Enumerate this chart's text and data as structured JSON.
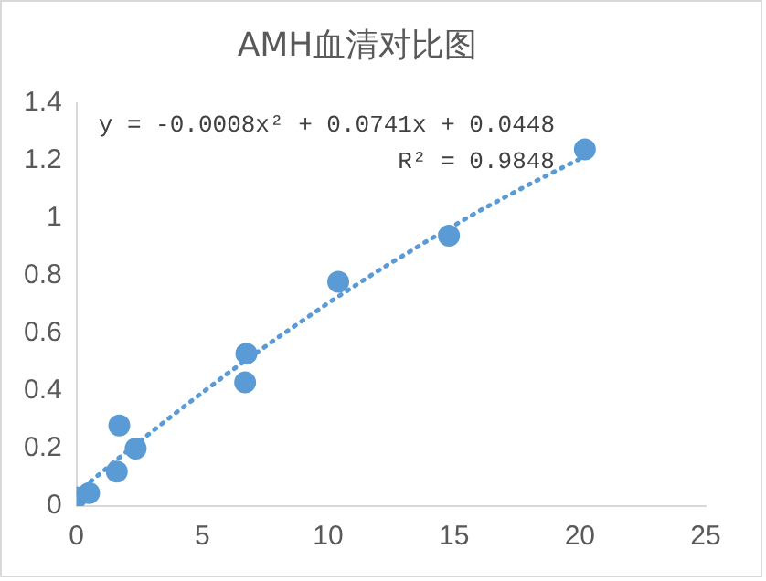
{
  "chart_data": {
    "type": "scatter",
    "title": "AMH血清对比图",
    "xlim": [
      0,
      25
    ],
    "xticks": [
      0,
      5,
      10,
      15,
      20,
      25
    ],
    "ylim": [
      0,
      1.4
    ],
    "yticks": [
      0,
      0.2,
      0.4,
      0.6,
      0.8,
      1,
      1.2,
      1.4
    ],
    "grid": false,
    "legend": false,
    "marker": "circle",
    "annotations": [
      "y = -0.0008x² + 0.0741x + 0.0448",
      "R² = 0.9848"
    ],
    "series": [
      {
        "color": "#5b9bd5",
        "x": [
          0,
          0.5,
          1.6,
          1.7,
          2.35,
          6.7,
          6.75,
          10.4,
          14.8,
          20.2
        ],
        "values": [
          0.03,
          0.045,
          0.12,
          0.28,
          0.2,
          0.43,
          0.53,
          0.78,
          0.94,
          1.24
        ]
      },
      {
        "type": "line",
        "color": "#5b9bd5",
        "line_style": "dotted",
        "marker": "none",
        "x": [
          0,
          2,
          4,
          6,
          8,
          10,
          12,
          14,
          16,
          18,
          20.2
        ],
        "values": [
          0.045,
          0.19,
          0.328,
          0.461,
          0.586,
          0.706,
          0.819,
          0.925,
          1.026,
          1.119,
          1.216
        ]
      }
    ]
  }
}
